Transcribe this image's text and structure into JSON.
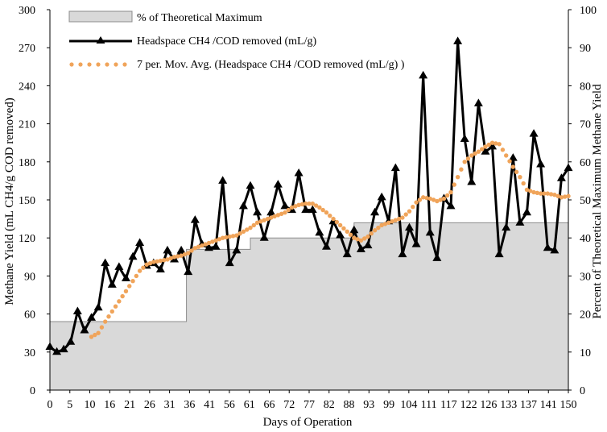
{
  "chart_data": {
    "type": "line",
    "xlabel": "Days of Operation",
    "ylabel_left": "Methane Yield (mL CH4/g COD removed)",
    "ylabel_right": "Percent of Theoretical Maximum Methane Yield",
    "x_tick_labels": [
      "0",
      "5",
      "10",
      "16",
      "21",
      "26",
      "31",
      "36",
      "41",
      "56",
      "61",
      "66",
      "72",
      "77",
      "82",
      "88",
      "93",
      "99",
      "104",
      "111",
      "117",
      "122",
      "126",
      "133",
      "137",
      "141",
      "150"
    ],
    "y_left": {
      "min": 0,
      "max": 300,
      "ticks": [
        0,
        30,
        60,
        90,
        120,
        150,
        180,
        210,
        240,
        270,
        300
      ]
    },
    "y_right": {
      "min": 0,
      "max": 100,
      "ticks": [
        0,
        10,
        20,
        30,
        40,
        50,
        60,
        70,
        80,
        90,
        100
      ]
    },
    "legend": [
      {
        "key": "area",
        "label": "% of Theoretical Maximum"
      },
      {
        "key": "line",
        "label": "Headspace CH4 /COD removed (mL/g)"
      },
      {
        "key": "mavg",
        "label": "7 per. Mov. Avg. (Headspace CH4 /COD removed (mL/g) )"
      }
    ],
    "series": [
      {
        "name": "% of Theoretical Maximum",
        "axis": "right",
        "x": [
          0,
          39.5,
          39.5,
          58,
          58,
          88,
          88,
          150
        ],
        "values": [
          18,
          18,
          37,
          37,
          40,
          40,
          44,
          44
        ]
      },
      {
        "name": "Headspace CH4 /COD removed (mL/g)",
        "axis": "left",
        "x": [
          0,
          2,
          4,
          6,
          8,
          10,
          12,
          14,
          16,
          18,
          20,
          22,
          24,
          26,
          28,
          30,
          32,
          34,
          36,
          38,
          40,
          42,
          44,
          46,
          48,
          50,
          52,
          54,
          56,
          58,
          60,
          62,
          64,
          66,
          68,
          70,
          72,
          74,
          76,
          78,
          80,
          82,
          84,
          86,
          88,
          90,
          92,
          94,
          96,
          98,
          100,
          102,
          104,
          106,
          108,
          110,
          112,
          114,
          116,
          118,
          120,
          122,
          124,
          126,
          128,
          130,
          132,
          134,
          136,
          138,
          140,
          142,
          144,
          146,
          148,
          150
        ],
        "values": [
          34,
          30,
          32,
          38,
          62,
          47,
          57,
          65,
          100,
          83,
          97,
          88,
          105,
          116,
          98,
          100,
          95,
          110,
          103,
          110,
          93,
          134,
          115,
          112,
          113,
          165,
          100,
          110,
          145,
          161,
          140,
          120,
          140,
          162,
          145,
          142,
          171,
          142,
          142,
          124,
          113,
          133,
          122,
          107,
          126,
          111,
          114,
          140,
          152,
          133,
          175,
          107,
          128,
          115,
          248,
          124,
          104,
          151,
          145,
          275,
          198,
          164,
          226,
          188,
          192,
          107,
          128,
          183,
          132,
          140,
          202,
          178,
          112,
          110,
          167,
          175
        ]
      },
      {
        "name": "7 per. Mov. Avg. (Headspace CH4 /COD removed (mL/g) )",
        "axis": "left",
        "x": [
          12,
          14,
          16,
          18,
          20,
          22,
          24,
          26,
          28,
          30,
          32,
          34,
          36,
          38,
          40,
          42,
          44,
          46,
          48,
          50,
          52,
          54,
          56,
          58,
          60,
          62,
          64,
          66,
          68,
          70,
          72,
          74,
          76,
          78,
          80,
          82,
          84,
          86,
          88,
          90,
          92,
          94,
          96,
          98,
          100,
          102,
          104,
          106,
          108,
          110,
          112,
          114,
          116,
          118,
          120,
          122,
          124,
          126,
          128,
          130,
          132,
          134,
          136,
          138,
          140,
          142,
          144,
          146,
          148,
          150
        ],
        "values": [
          42,
          45,
          54,
          62,
          70,
          78,
          86,
          94,
          99,
          101,
          102,
          103,
          105,
          106,
          108,
          112,
          114,
          116,
          118,
          120,
          121,
          122,
          125,
          128,
          132,
          134,
          136,
          138,
          140,
          144,
          146,
          147,
          147,
          144,
          140,
          135,
          130,
          125,
          120,
          118,
          121,
          126,
          130,
          132,
          134,
          136,
          141,
          148,
          152,
          151,
          149,
          151,
          156,
          168,
          180,
          185,
          188,
          192,
          195,
          194,
          185,
          176,
          168,
          158,
          156,
          155,
          155,
          154,
          152,
          153
        ]
      }
    ]
  }
}
